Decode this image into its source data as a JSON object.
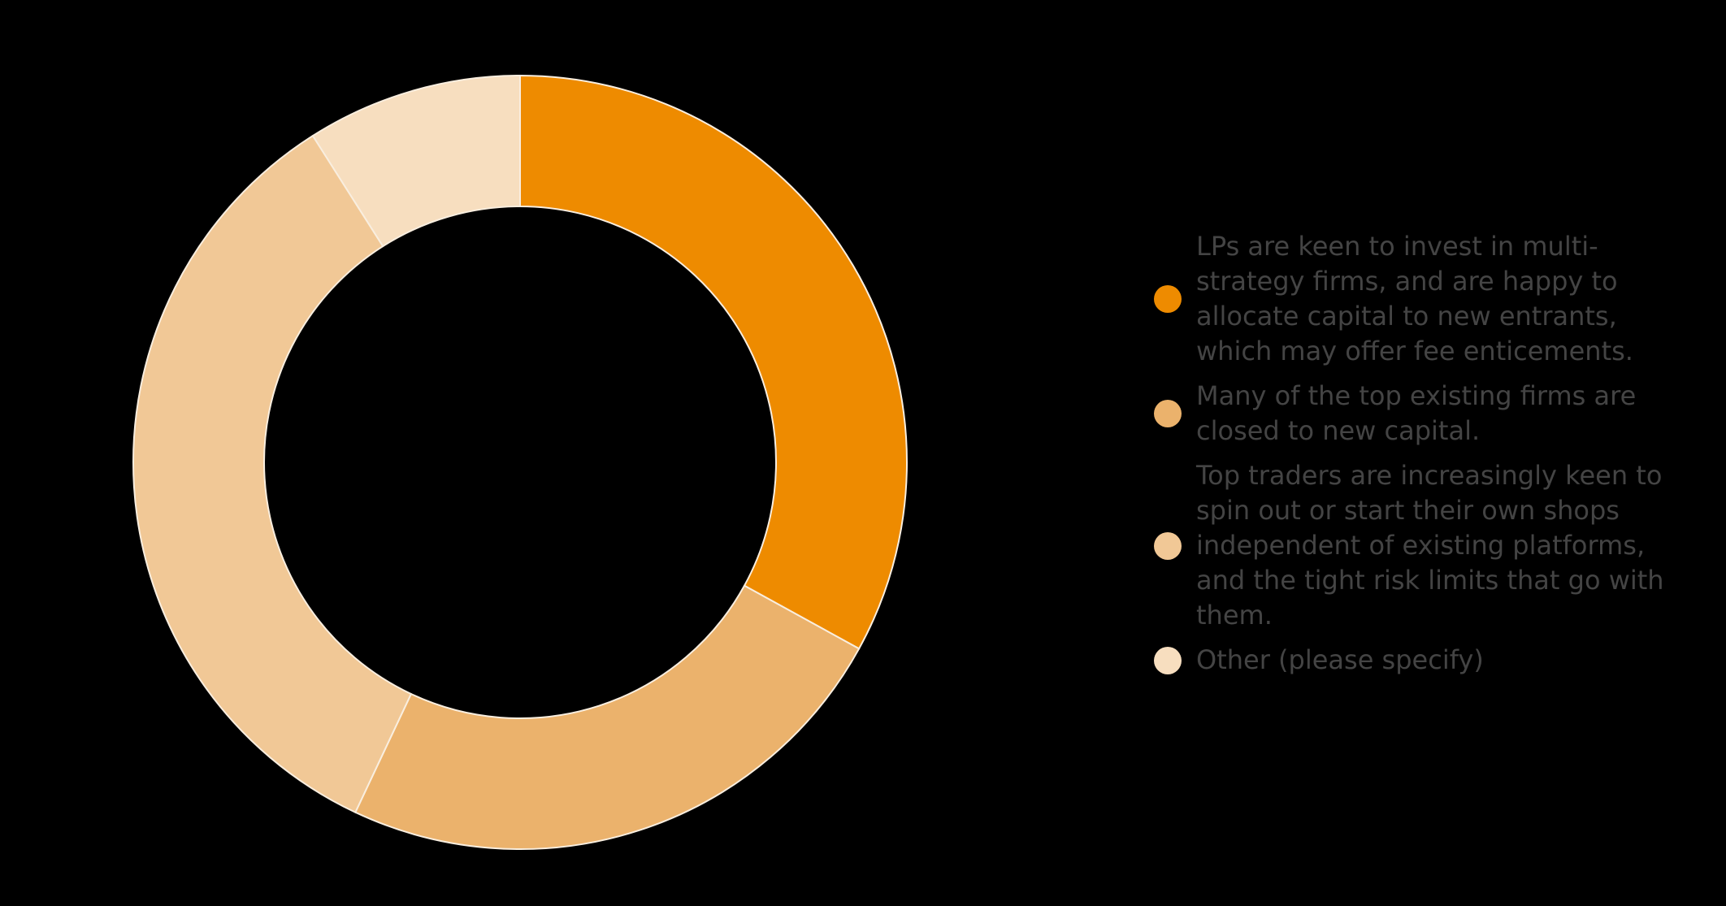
{
  "chart_data": {
    "type": "pie",
    "donut": true,
    "title": "",
    "slices": [
      {
        "label": "LPs are keen to invest in multi-strategy firms, and are happy to allocate capital to new entrants, which may offer fee enticements.",
        "value": 33,
        "color": "#EE8B00"
      },
      {
        "label": "Many of the top existing firms are closed to new capital.",
        "value": 24,
        "color": "#EBB26C"
      },
      {
        "label": "Top traders are increasingly keen to spin out or start their own shops independent of existing platforms, and the tight risk limits that go with them.",
        "value": 34,
        "color": "#F1C896"
      },
      {
        "label": "Other (please specify)",
        "value": 9,
        "color": "#F7DEBF"
      }
    ],
    "legend_position": "right"
  },
  "slice_separator_color": "#F9EEDF",
  "legend_text_color": "#444444"
}
